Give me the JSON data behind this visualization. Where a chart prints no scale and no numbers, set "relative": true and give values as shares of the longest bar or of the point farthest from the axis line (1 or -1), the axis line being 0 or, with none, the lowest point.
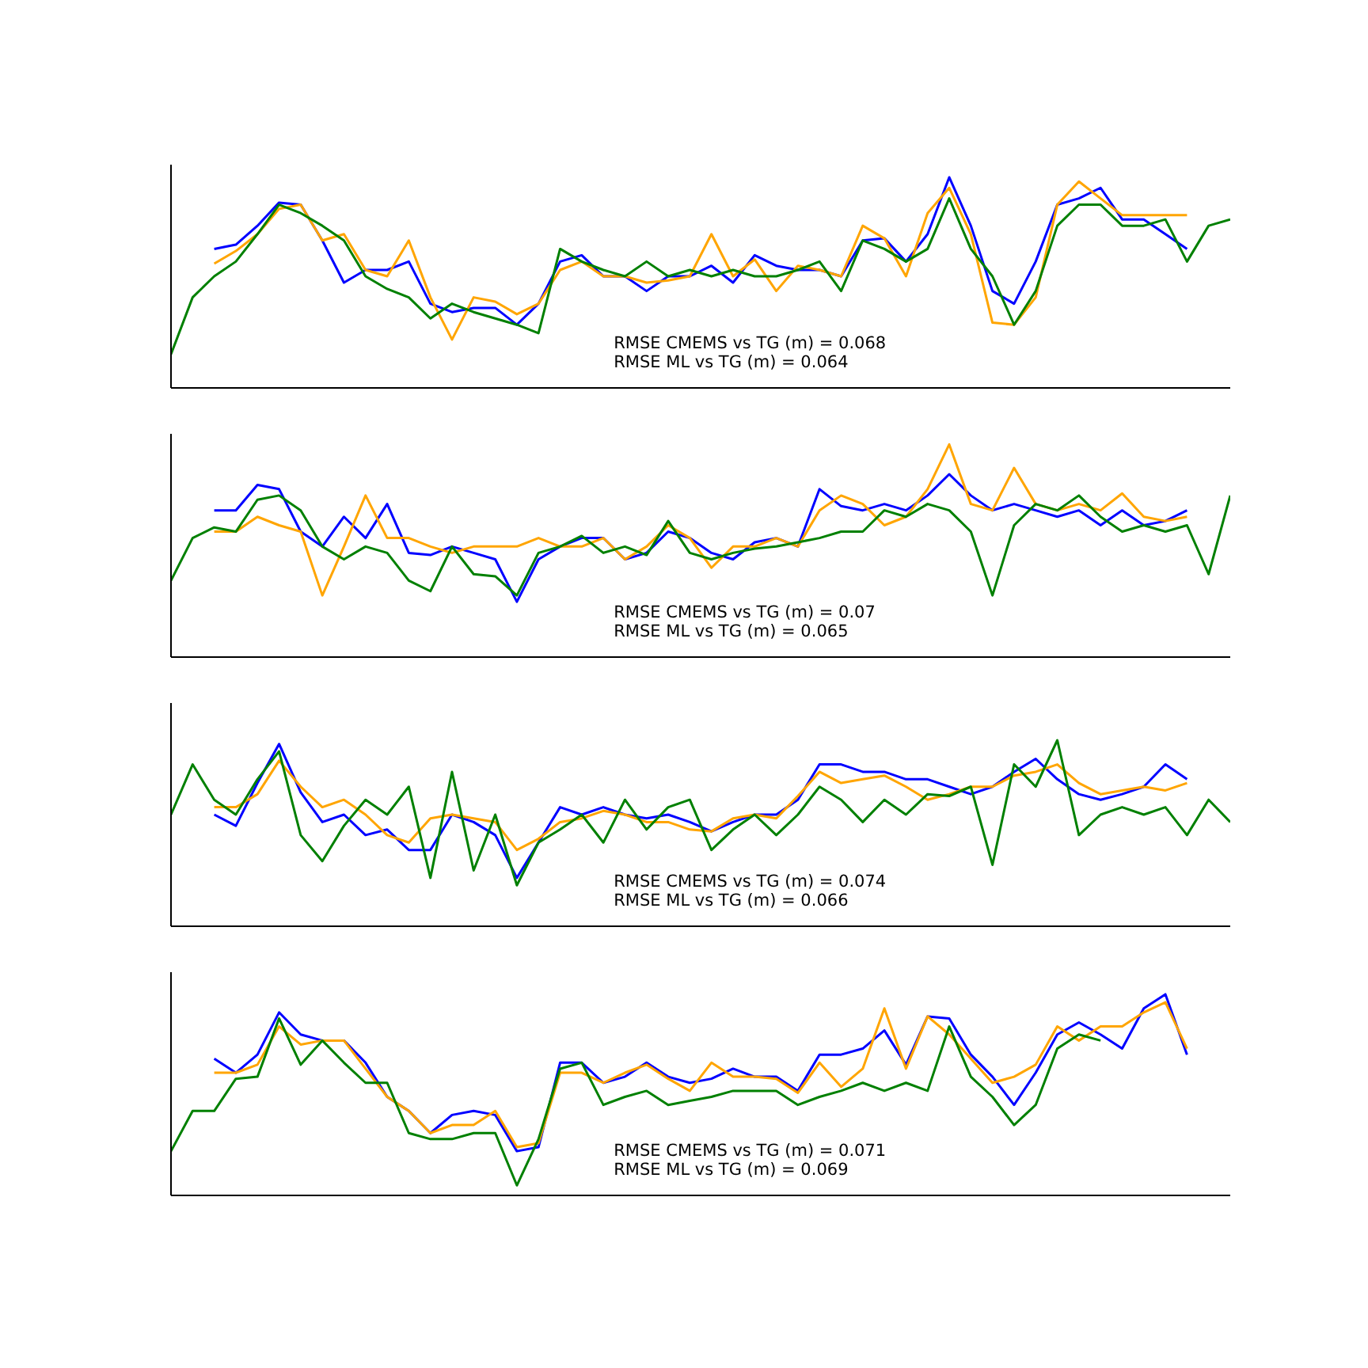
{
  "chart_data": [
    {
      "type": "line",
      "relative": true,
      "categories": [
        null,
        null,
        null,
        null,
        null,
        null,
        null,
        null,
        null,
        null,
        null,
        null,
        null,
        null,
        null,
        null,
        null,
        null,
        null,
        null,
        null,
        null,
        null,
        null,
        null,
        null,
        null,
        null,
        null,
        null,
        null,
        null,
        null,
        null,
        null,
        null,
        null,
        null,
        null,
        null,
        null,
        null,
        null,
        null,
        null,
        null,
        null,
        null,
        null,
        null
      ],
      "series": [
        {
          "color": "#0000ff",
          "values": [
            null,
            null,
            0.66,
            0.68,
            0.77,
            0.88,
            0.87,
            0.7,
            0.5,
            0.56,
            0.56,
            0.6,
            0.4,
            0.36,
            0.38,
            0.38,
            0.3,
            0.4,
            0.6,
            0.63,
            0.53,
            0.53,
            0.46,
            0.53,
            0.53,
            0.58,
            0.5,
            0.63,
            0.58,
            0.56,
            0.56,
            0.53,
            0.7,
            0.71,
            0.6,
            0.73,
            1.0,
            0.77,
            0.46,
            0.4,
            0.6,
            0.87,
            0.9,
            0.95,
            0.8,
            0.8,
            0.73,
            0.66,
            null,
            null
          ]
        },
        {
          "color": "#ffa500",
          "values": [
            null,
            null,
            0.59,
            0.65,
            0.73,
            0.85,
            0.87,
            0.7,
            0.73,
            0.56,
            0.53,
            0.7,
            0.43,
            0.23,
            0.43,
            0.41,
            0.35,
            0.4,
            0.56,
            0.6,
            0.53,
            0.53,
            0.5,
            0.51,
            0.53,
            0.73,
            0.53,
            0.61,
            0.46,
            0.58,
            0.56,
            0.53,
            0.77,
            0.71,
            0.53,
            0.83,
            0.95,
            0.73,
            0.31,
            0.3,
            0.43,
            0.87,
            0.98,
            0.9,
            0.82,
            0.82,
            0.82,
            0.82,
            null,
            null
          ]
        },
        {
          "color": "#008000",
          "values": [
            0.16,
            0.43,
            0.53,
            0.6,
            0.73,
            0.87,
            0.83,
            0.77,
            0.7,
            0.53,
            0.47,
            0.43,
            0.33,
            0.4,
            0.36,
            0.33,
            0.3,
            0.26,
            0.66,
            0.6,
            0.56,
            0.53,
            0.6,
            0.53,
            0.56,
            0.53,
            0.56,
            0.53,
            0.53,
            0.56,
            0.6,
            0.46,
            0.7,
            0.66,
            0.6,
            0.66,
            0.9,
            0.66,
            0.53,
            0.3,
            0.46,
            0.77,
            0.87,
            0.87,
            0.77,
            0.77,
            0.8,
            0.6,
            0.77,
            0.8
          ]
        }
      ],
      "annotations": [
        "RMSE CMEMS vs TG (m) = 0.068",
        "RMSE ML vs TG (m) = 0.064"
      ]
    },
    {
      "type": "line",
      "relative": true,
      "categories": [
        null,
        null,
        null,
        null,
        null,
        null,
        null,
        null,
        null,
        null,
        null,
        null,
        null,
        null,
        null,
        null,
        null,
        null,
        null,
        null,
        null,
        null,
        null,
        null,
        null,
        null,
        null,
        null,
        null,
        null,
        null,
        null,
        null,
        null,
        null,
        null,
        null,
        null,
        null,
        null,
        null,
        null,
        null,
        null,
        null,
        null,
        null,
        null,
        null,
        null
      ],
      "series": [
        {
          "color": "#0000ff",
          "values": [
            null,
            null,
            0.69,
            0.69,
            0.81,
            0.79,
            0.59,
            0.52,
            0.66,
            0.56,
            0.72,
            0.49,
            0.48,
            0.52,
            0.49,
            0.46,
            0.26,
            0.46,
            0.52,
            0.56,
            0.56,
            0.46,
            0.49,
            0.59,
            0.56,
            0.49,
            0.46,
            0.54,
            0.56,
            0.52,
            0.79,
            0.71,
            0.69,
            0.72,
            0.69,
            0.76,
            0.86,
            0.76,
            0.69,
            0.72,
            0.69,
            0.66,
            0.69,
            0.62,
            0.69,
            0.62,
            0.64,
            0.69,
            null,
            null
          ]
        },
        {
          "color": "#ffa500",
          "values": [
            null,
            null,
            0.59,
            0.59,
            0.66,
            0.62,
            0.59,
            0.29,
            0.52,
            0.76,
            0.56,
            0.56,
            0.52,
            0.49,
            0.52,
            0.52,
            0.52,
            0.56,
            0.52,
            0.52,
            0.56,
            0.46,
            0.52,
            0.62,
            0.56,
            0.42,
            0.52,
            0.52,
            0.56,
            0.52,
            0.69,
            0.76,
            0.72,
            0.62,
            0.66,
            0.79,
            1.0,
            0.72,
            0.69,
            0.89,
            0.72,
            0.69,
            0.72,
            0.69,
            0.77,
            0.66,
            0.64,
            0.66,
            null,
            null
          ]
        },
        {
          "color": "#008000",
          "values": [
            0.36,
            0.56,
            0.61,
            0.59,
            0.74,
            0.76,
            0.69,
            0.52,
            0.46,
            0.52,
            0.49,
            0.36,
            0.31,
            0.52,
            0.39,
            0.38,
            0.29,
            0.49,
            0.52,
            0.57,
            0.49,
            0.52,
            0.48,
            0.64,
            0.49,
            0.46,
            0.49,
            0.51,
            0.52,
            0.54,
            0.56,
            0.59,
            0.59,
            0.69,
            0.66,
            0.72,
            0.69,
            0.59,
            0.29,
            0.62,
            0.72,
            0.69,
            0.76,
            0.66,
            0.59,
            0.62,
            0.59,
            0.62,
            0.39,
            0.76
          ]
        }
      ],
      "annotations": [
        "RMSE CMEMS vs TG (m) = 0.07",
        "RMSE ML vs TG (m) = 0.065"
      ]
    },
    {
      "type": "line",
      "relative": true,
      "categories": [
        null,
        null,
        null,
        null,
        null,
        null,
        null,
        null,
        null,
        null,
        null,
        null,
        null,
        null,
        null,
        null,
        null,
        null,
        null,
        null,
        null,
        null,
        null,
        null,
        null,
        null,
        null,
        null,
        null,
        null,
        null,
        null,
        null,
        null,
        null,
        null,
        null,
        null,
        null,
        null,
        null,
        null,
        null,
        null,
        null,
        null,
        null,
        null,
        null,
        null
      ],
      "series": [
        {
          "color": "#0000ff",
          "values": [
            null,
            null,
            0.6,
            0.54,
            0.77,
            0.98,
            0.72,
            0.56,
            0.6,
            0.49,
            0.52,
            0.41,
            0.41,
            0.6,
            0.56,
            0.49,
            0.26,
            0.45,
            0.64,
            0.6,
            0.64,
            0.6,
            0.58,
            0.6,
            0.56,
            0.51,
            0.56,
            0.6,
            0.6,
            0.68,
            0.87,
            0.87,
            0.83,
            0.83,
            0.79,
            0.79,
            0.75,
            0.71,
            0.75,
            0.83,
            0.9,
            0.79,
            0.71,
            0.68,
            0.71,
            0.75,
            0.87,
            0.79,
            null,
            null
          ]
        },
        {
          "color": "#ffa500",
          "values": [
            null,
            null,
            0.64,
            0.64,
            0.71,
            0.89,
            0.75,
            0.64,
            0.68,
            0.6,
            0.49,
            0.45,
            0.58,
            0.6,
            0.58,
            0.56,
            0.41,
            0.47,
            0.56,
            0.58,
            0.62,
            0.6,
            0.56,
            0.56,
            0.52,
            0.51,
            0.58,
            0.6,
            0.58,
            0.7,
            0.83,
            0.77,
            0.79,
            0.81,
            0.75,
            0.68,
            0.71,
            0.75,
            0.75,
            0.81,
            0.83,
            0.87,
            0.77,
            0.71,
            0.73,
            0.75,
            0.73,
            0.77,
            null,
            null
          ]
        },
        {
          "color": "#008000",
          "values": [
            0.6,
            0.87,
            0.68,
            0.6,
            0.79,
            0.94,
            0.49,
            0.35,
            0.54,
            0.68,
            0.6,
            0.75,
            0.26,
            0.83,
            0.3,
            0.6,
            0.22,
            0.45,
            0.52,
            0.6,
            0.45,
            0.68,
            0.52,
            0.64,
            0.68,
            0.41,
            0.52,
            0.6,
            0.49,
            0.6,
            0.75,
            0.68,
            0.56,
            0.68,
            0.6,
            0.71,
            0.7,
            0.75,
            0.33,
            0.87,
            0.75,
            1.0,
            0.49,
            0.6,
            0.64,
            0.6,
            0.64,
            0.49,
            0.68,
            0.56
          ]
        }
      ],
      "annotations": [
        "RMSE CMEMS vs TG (m) = 0.074",
        "RMSE ML vs TG (m) = 0.066"
      ]
    },
    {
      "type": "line",
      "relative": true,
      "categories": [
        null,
        null,
        null,
        null,
        null,
        null,
        null,
        null,
        null,
        null,
        null,
        null,
        null,
        null,
        null,
        null,
        null,
        null,
        null,
        null,
        null,
        null,
        null,
        null,
        null,
        null,
        null,
        null,
        null,
        null,
        null,
        null,
        null,
        null,
        null,
        null,
        null,
        null,
        null,
        null,
        null,
        null,
        null,
        null,
        null,
        null,
        null,
        null,
        null,
        null
      ],
      "series": [
        {
          "color": "#0000ff",
          "values": [
            null,
            null,
            0.68,
            0.61,
            0.7,
            0.91,
            0.8,
            0.77,
            0.77,
            0.66,
            0.49,
            0.42,
            0.31,
            0.4,
            0.42,
            0.4,
            0.22,
            0.24,
            0.66,
            0.66,
            0.56,
            0.59,
            0.66,
            0.59,
            0.56,
            0.58,
            0.63,
            0.59,
            0.59,
            0.52,
            0.7,
            0.7,
            0.73,
            0.82,
            0.65,
            0.89,
            0.88,
            0.7,
            0.59,
            0.45,
            0.61,
            0.8,
            0.86,
            0.8,
            0.73,
            0.93,
            1.0,
            0.7,
            null,
            null
          ]
        },
        {
          "color": "#ffa500",
          "values": [
            null,
            null,
            0.61,
            0.61,
            0.65,
            0.84,
            0.75,
            0.77,
            0.77,
            0.63,
            0.49,
            0.42,
            0.31,
            0.35,
            0.35,
            0.42,
            0.24,
            0.26,
            0.61,
            0.61,
            0.56,
            0.61,
            0.65,
            0.58,
            0.52,
            0.66,
            0.59,
            0.59,
            0.58,
            0.51,
            0.66,
            0.54,
            0.63,
            0.93,
            0.63,
            0.89,
            0.8,
            0.68,
            0.56,
            0.59,
            0.65,
            0.84,
            0.77,
            0.84,
            0.84,
            0.91,
            0.96,
            0.73,
            null,
            null
          ]
        },
        {
          "color": "#008000",
          "values": [
            0.22,
            0.42,
            0.42,
            0.58,
            0.59,
            0.88,
            0.65,
            0.77,
            0.66,
            0.56,
            0.56,
            0.31,
            0.28,
            0.28,
            0.31,
            0.31,
            0.05,
            0.28,
            0.63,
            0.66,
            0.45,
            0.49,
            0.52,
            0.45,
            0.47,
            0.49,
            0.52,
            0.52,
            0.52,
            0.45,
            0.49,
            0.52,
            0.56,
            0.52,
            0.56,
            0.52,
            0.84,
            0.59,
            0.49,
            0.35,
            0.45,
            0.73,
            0.8,
            0.77,
            null,
            null,
            null,
            null,
            null,
            null
          ]
        }
      ],
      "annotations": [
        "RMSE CMEMS vs TG (m) = 0.071",
        "RMSE ML vs TG (m) = 0.069"
      ]
    }
  ]
}
